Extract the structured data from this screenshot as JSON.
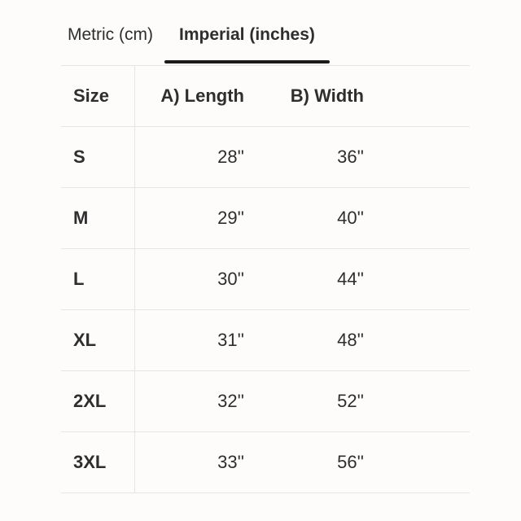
{
  "tabs": {
    "metric": {
      "label": "Metric (cm)",
      "active": false
    },
    "imperial": {
      "label": "Imperial (inches)",
      "active": true
    }
  },
  "table": {
    "columns": {
      "size": "Size",
      "length": "A) Length",
      "width": "B) Width"
    },
    "rows": [
      {
        "size": "S",
        "length": "28''",
        "width": "36''"
      },
      {
        "size": "M",
        "length": "29''",
        "width": "40''"
      },
      {
        "size": "L",
        "length": "30''",
        "width": "44''"
      },
      {
        "size": "XL",
        "length": "31''",
        "width": "48''"
      },
      {
        "size": "2XL",
        "length": "32''",
        "width": "52''"
      },
      {
        "size": "3XL",
        "length": "33''",
        "width": "56''"
      }
    ]
  },
  "colors": {
    "text": "#2e2e2e",
    "border": "#e7e5e3",
    "active_tab_underline": "#1b1b1b",
    "background": "#fdfcfb"
  }
}
